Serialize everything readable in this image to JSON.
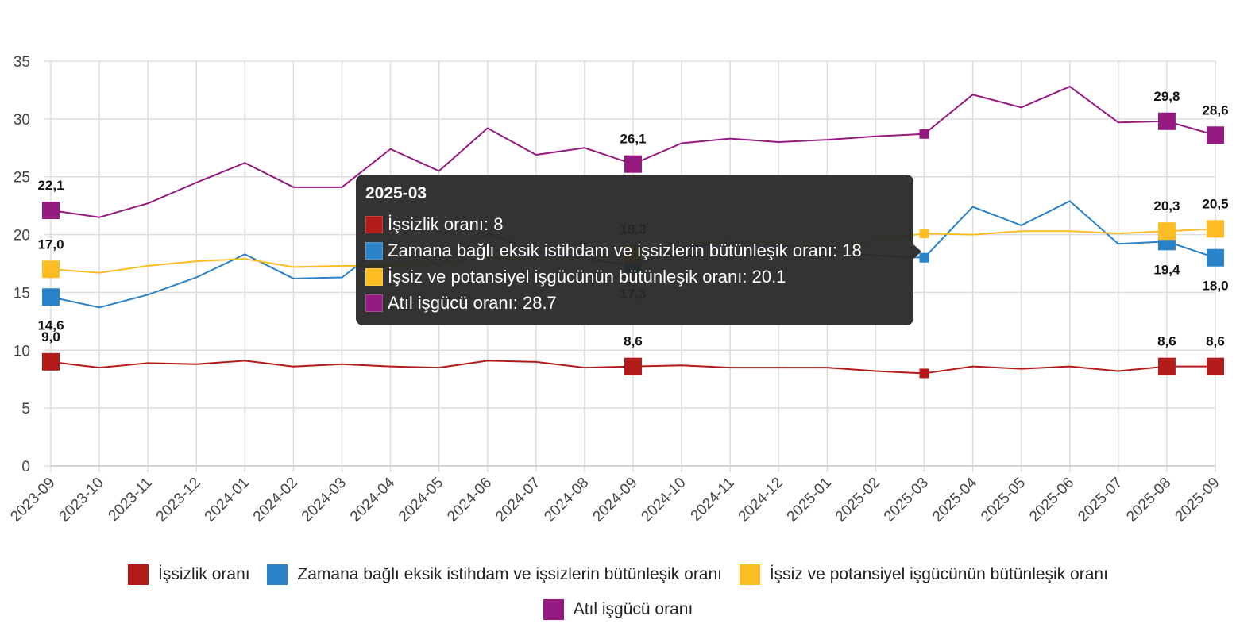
{
  "chart_data": {
    "type": "line",
    "categories": [
      "2023-09",
      "2023-10",
      "2023-11",
      "2023-12",
      "2024-01",
      "2024-02",
      "2024-03",
      "2024-04",
      "2024-05",
      "2024-06",
      "2024-07",
      "2024-08",
      "2024-09",
      "2024-10",
      "2024-11",
      "2024-12",
      "2025-01",
      "2025-02",
      "2025-03",
      "2025-04",
      "2025-05",
      "2025-06",
      "2025-07",
      "2025-08",
      "2025-09"
    ],
    "ylim": [
      0,
      35
    ],
    "yticks": [
      "0",
      "5",
      "10",
      "15",
      "20",
      "25",
      "30",
      "35"
    ],
    "grid": true,
    "legend_position": "bottom",
    "series": [
      {
        "name": "İşsizlik oranı",
        "color": "#b31b1b",
        "values": [
          9.0,
          8.5,
          8.9,
          8.8,
          9.1,
          8.6,
          8.8,
          8.6,
          8.5,
          9.1,
          9.0,
          8.5,
          8.6,
          8.7,
          8.5,
          8.5,
          8.5,
          8.2,
          8.0,
          8.6,
          8.4,
          8.6,
          8.2,
          8.6,
          8.6
        ],
        "labels": {
          "0": "9,0",
          "12": "8,6",
          "23": "8,6",
          "24": "8,6"
        }
      },
      {
        "name": "Zamana bağlı eksik istihdam ve işsizlerin bütünleşik oranı",
        "color": "#2a82c9",
        "values": [
          14.6,
          13.7,
          14.8,
          16.3,
          18.3,
          16.2,
          16.3,
          19.5,
          17.4,
          20.1,
          18.6,
          17.9,
          17.3,
          18.9,
          19.3,
          19.1,
          18.6,
          18.2,
          18.0,
          22.4,
          20.8,
          22.9,
          19.2,
          19.4,
          18.0
        ],
        "labels": {
          "0": "14,6",
          "12": "17,3",
          "23": "19,4",
          "24": "18,0"
        }
      },
      {
        "name": "İşsiz ve potansiyel işgücünün bütünleşik oranı",
        "color": "#fbbc24",
        "values": [
          17.0,
          16.7,
          17.3,
          17.7,
          17.9,
          17.2,
          17.3,
          17.3,
          17.5,
          18.0,
          17.8,
          17.9,
          18.3,
          19.2,
          19.4,
          19.3,
          18.9,
          19.5,
          20.1,
          20.0,
          20.3,
          20.3,
          20.1,
          20.3,
          20.5
        ],
        "labels": {
          "0": "17,0",
          "12": "18,3",
          "23": "20,3",
          "24": "20,5"
        }
      },
      {
        "name": "Atıl işgücü oranı",
        "color": "#951b81",
        "values": [
          22.1,
          21.5,
          22.7,
          24.5,
          26.2,
          24.1,
          24.1,
          27.4,
          25.5,
          29.2,
          26.9,
          27.5,
          26.1,
          27.9,
          28.3,
          28.0,
          28.2,
          28.5,
          28.7,
          32.1,
          31.0,
          32.8,
          29.7,
          29.8,
          28.6
        ],
        "labels": {
          "0": "22,1",
          "12": "26,1",
          "23": "29,8",
          "24": "28,6"
        }
      }
    ]
  },
  "tooltip": {
    "title": "2025-03",
    "rows": [
      {
        "text": "İşsizlik oranı: 8",
        "color": "#b31b1b"
      },
      {
        "text": "Zamana bağlı eksik istihdam ve işsizlerin bütünleşik oranı: 18",
        "color": "#2a82c9"
      },
      {
        "text": "İşsiz ve potansiyel işgücünün bütünleşik oranı: 20.1",
        "color": "#fbbc24"
      },
      {
        "text": "Atıl işgücü oranı: 28.7",
        "color": "#951b81"
      }
    ]
  },
  "legend": [
    {
      "label": "İşsizlik oranı",
      "color": "#b31b1b"
    },
    {
      "label": "Zamana bağlı eksik istihdam ve işsizlerin bütünleşik oranı",
      "color": "#2a82c9"
    },
    {
      "label": "İşsiz ve potansiyel işgücünün bütünleşik oranı",
      "color": "#fbbc24"
    },
    {
      "label": "Atıl işgücü oranı",
      "color": "#951b81"
    }
  ]
}
